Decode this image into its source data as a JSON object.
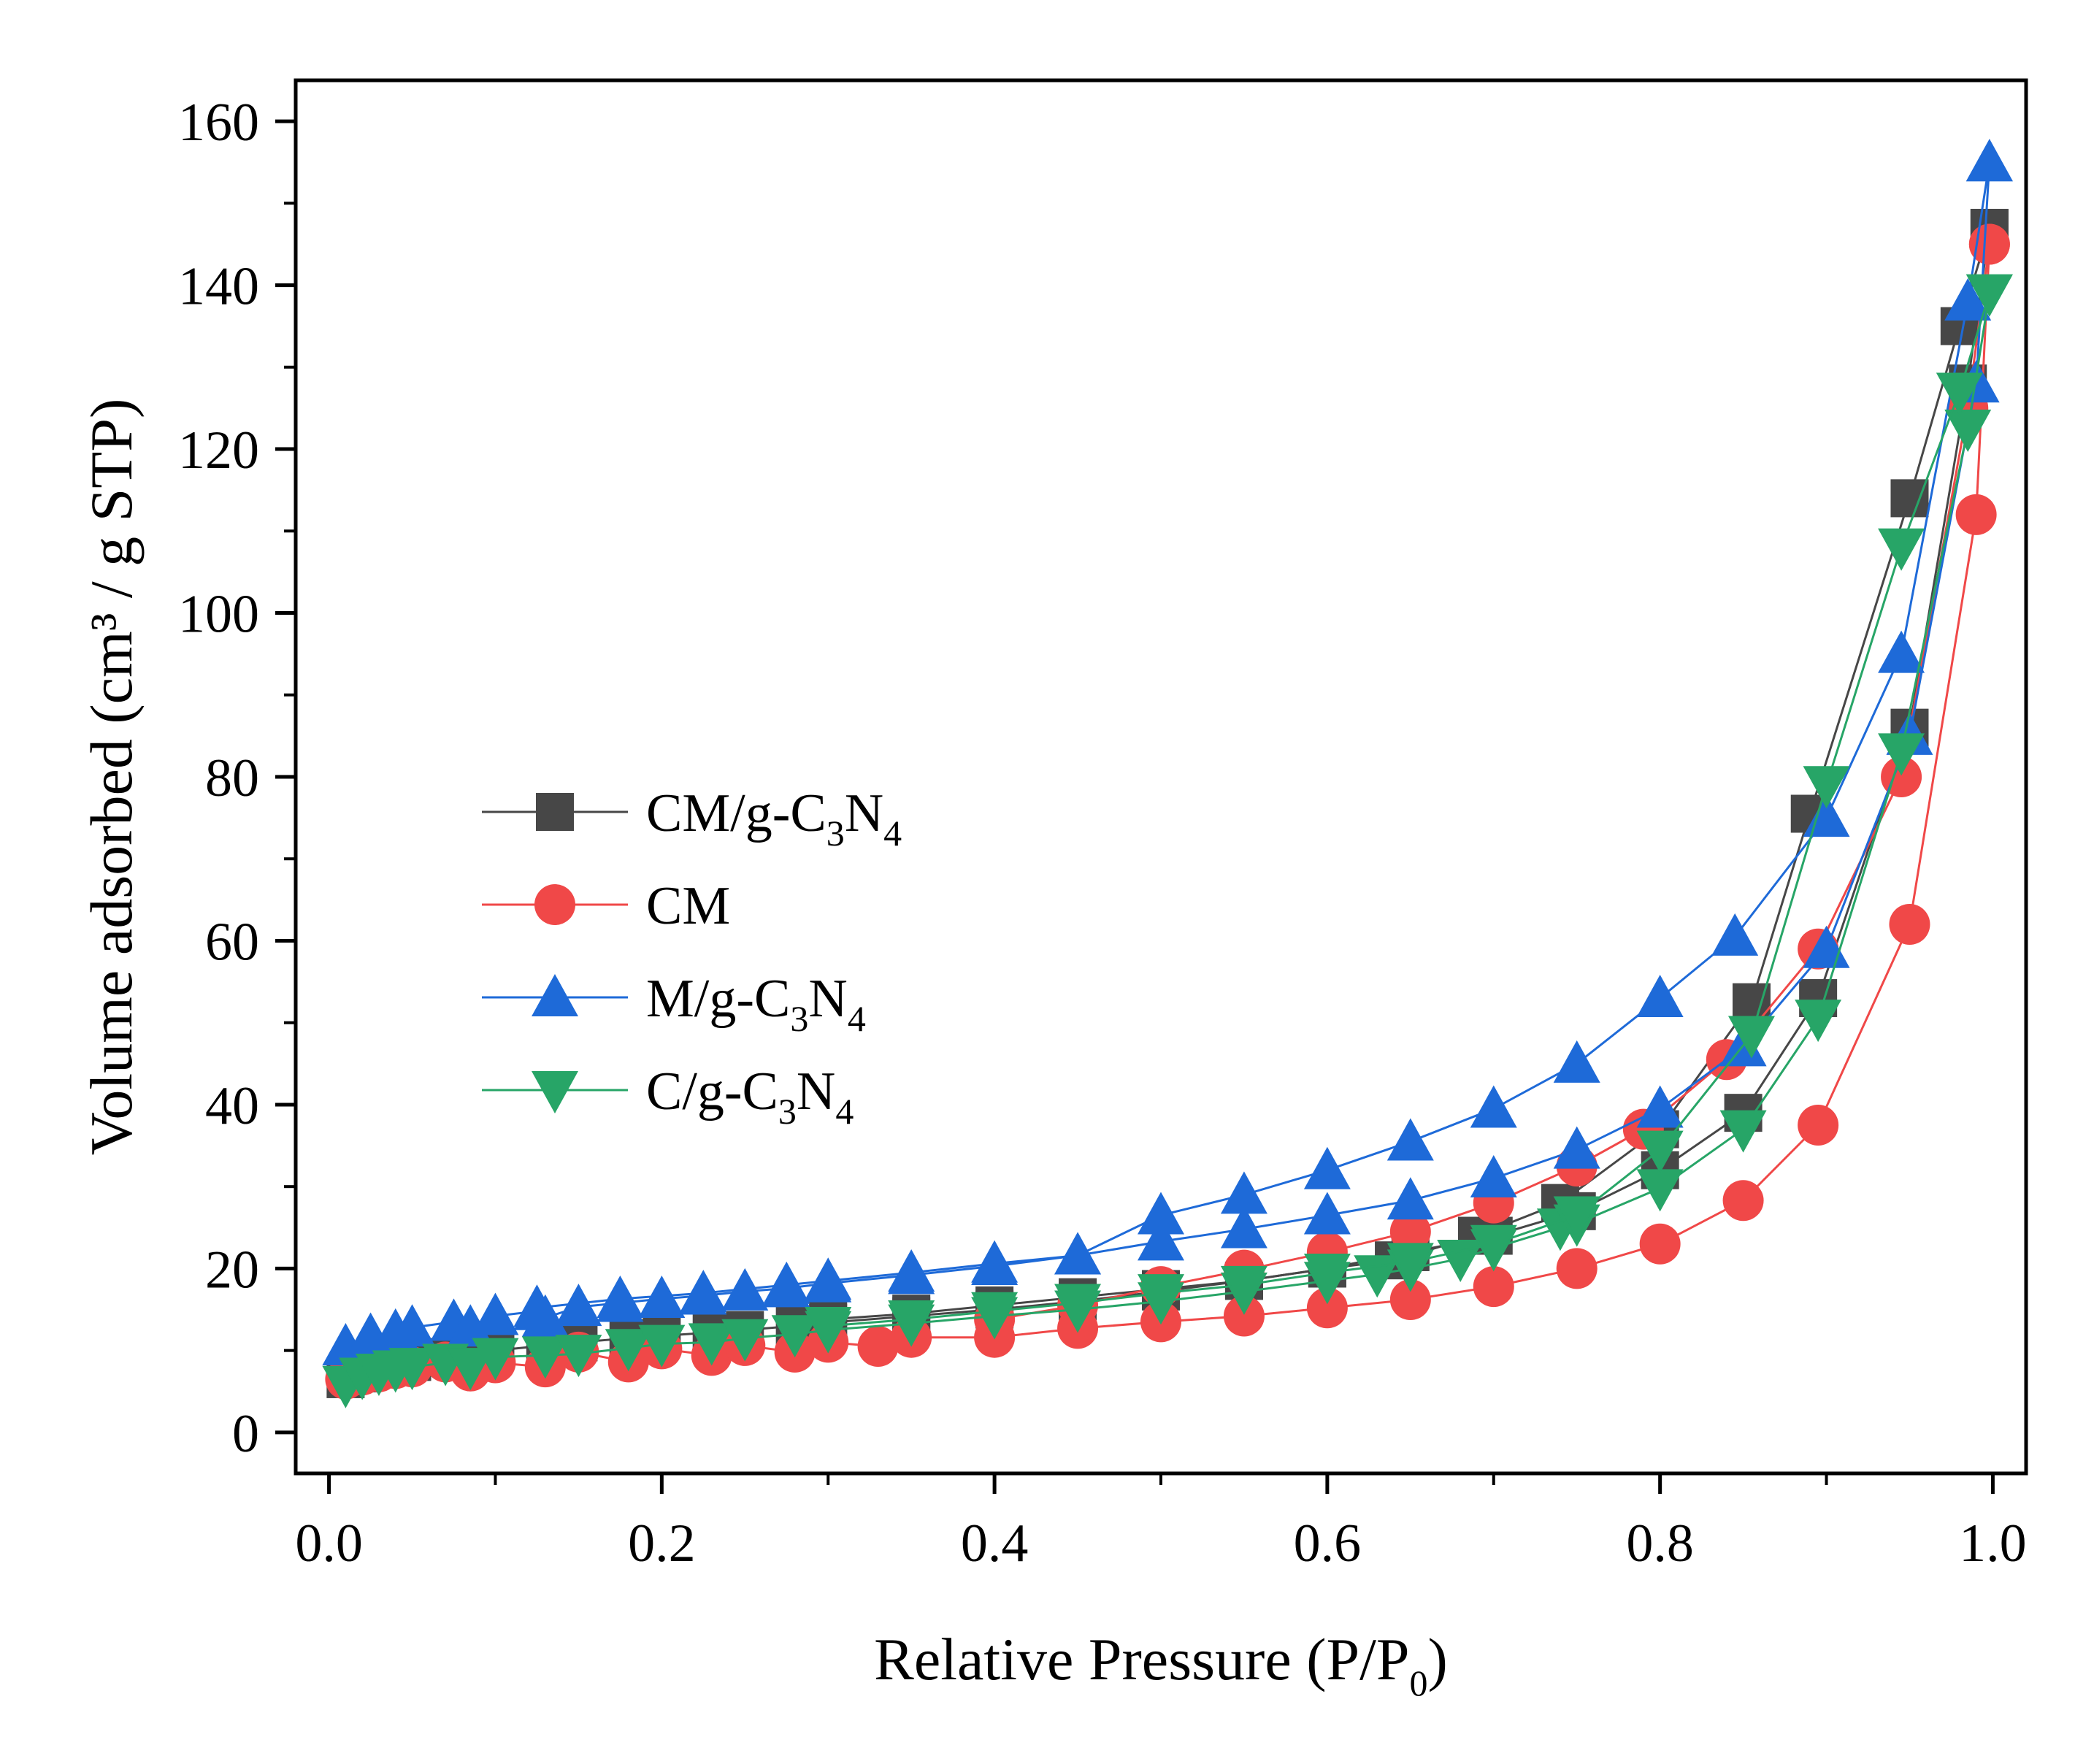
{
  "chart_data": {
    "type": "scatter",
    "xlabel": "Relative Pressure (P/P",
    "xlabel_sub": "0",
    "xlabel_end": ")",
    "ylabel": "Volume adsorbed (cm³ / g STP)",
    "xlim": [
      -0.02,
      1.02
    ],
    "ylim": [
      -5,
      165
    ],
    "xticks": [
      0.0,
      0.2,
      0.4,
      0.6,
      0.8,
      1.0
    ],
    "xtick_labels": [
      "0.0",
      "0.2",
      "0.4",
      "0.6",
      "0.8",
      "1.0"
    ],
    "yticks": [
      0,
      20,
      40,
      60,
      80,
      100,
      120,
      140,
      160
    ],
    "ytick_labels": [
      "0",
      "20",
      "40",
      "60",
      "80",
      "100",
      "120",
      "140",
      "160"
    ],
    "grid": false,
    "legend_position": "center-left",
    "series": [
      {
        "name": "CM/g-C3N4",
        "name_parts": [
          [
            "CM/g-C",
            false
          ],
          [
            "3",
            true
          ],
          [
            "N",
            false
          ],
          [
            "4",
            true
          ]
        ],
        "marker": "square",
        "color": "#474747",
        "adsorption": {
          "x": [
            0.01,
            0.02,
            0.03,
            0.04,
            0.05,
            0.07,
            0.09,
            0.1,
            0.13,
            0.15,
            0.18,
            0.2,
            0.23,
            0.25,
            0.28,
            0.3,
            0.35,
            0.4,
            0.45,
            0.5,
            0.55,
            0.6,
            0.65,
            0.7,
            0.75,
            0.8,
            0.85,
            0.895,
            0.95,
            0.985,
            0.998
          ],
          "y": [
            6.5,
            7.2,
            7.8,
            8.2,
            8.6,
            9.2,
            9.6,
            10.0,
            10.6,
            11.0,
            11.5,
            11.8,
            12.2,
            12.5,
            13.0,
            13.4,
            14.2,
            15.0,
            16.0,
            17.2,
            18.5,
            20.0,
            22.0,
            24.0,
            27.0,
            32.0,
            39.0,
            53.0,
            86.0,
            128.0,
            147.0
          ]
        },
        "desorption": {
          "x": [
            0.998,
            0.98,
            0.95,
            0.89,
            0.855,
            0.8,
            0.74,
            0.69,
            0.64,
            0.6,
            0.55,
            0.5,
            0.45,
            0.4,
            0.35,
            0.3
          ],
          "y": [
            147.0,
            135.0,
            114.0,
            75.5,
            52.5,
            37.0,
            28.0,
            24.0,
            21.0,
            20.0,
            18.5,
            17.5,
            16.5,
            15.5,
            14.5,
            13.8
          ]
        }
      },
      {
        "name": "CM",
        "name_parts": [
          [
            "CM",
            false
          ]
        ],
        "marker": "circle",
        "color": "#f04848",
        "adsorption": {
          "x": [
            0.01,
            0.02,
            0.03,
            0.04,
            0.05,
            0.07,
            0.085,
            0.1,
            0.13,
            0.15,
            0.18,
            0.2,
            0.23,
            0.25,
            0.28,
            0.3,
            0.33,
            0.35,
            0.4,
            0.45,
            0.5,
            0.55,
            0.6,
            0.65,
            0.7,
            0.75,
            0.8,
            0.85,
            0.895,
            0.95,
            0.99,
            0.998
          ],
          "y": [
            6.5,
            7.0,
            7.4,
            7.8,
            8.0,
            8.6,
            7.5,
            8.5,
            8.0,
            9.8,
            8.6,
            10.2,
            9.4,
            10.6,
            9.8,
            11.0,
            10.5,
            11.6,
            11.6,
            12.7,
            13.5,
            14.2,
            15.2,
            16.2,
            17.8,
            20.0,
            23.0,
            28.3,
            37.5,
            62.0,
            112.0,
            145.0
          ]
        },
        "desorption": {
          "x": [
            0.998,
            0.985,
            0.945,
            0.895,
            0.84,
            0.79,
            0.75,
            0.7,
            0.65,
            0.6,
            0.55,
            0.5,
            0.45,
            0.4
          ],
          "y": [
            145.0,
            125.0,
            80.0,
            59.0,
            45.5,
            37.0,
            32.5,
            28.0,
            24.5,
            22.0,
            19.8,
            17.8,
            15.5,
            13.8
          ]
        }
      },
      {
        "name": "M/g-C3N4",
        "name_parts": [
          [
            "M/g-C",
            false
          ],
          [
            "3",
            true
          ],
          [
            "N",
            false
          ],
          [
            "4",
            true
          ]
        ],
        "marker": "triangle-up",
        "color": "#1e6ad8",
        "adsorption": {
          "x": [
            0.01,
            0.025,
            0.04,
            0.05,
            0.075,
            0.085,
            0.1,
            0.125,
            0.13,
            0.15,
            0.175,
            0.2,
            0.225,
            0.25,
            0.275,
            0.3,
            0.35,
            0.4,
            0.45,
            0.5,
            0.55,
            0.6,
            0.65,
            0.7,
            0.75,
            0.8,
            0.85,
            0.9,
            0.95,
            0.99,
            0.998
          ],
          "y": [
            10.5,
            11.8,
            12.3,
            12.8,
            13.5,
            12.8,
            14.2,
            14.8,
            14.0,
            15.3,
            15.8,
            16.3,
            16.7,
            17.2,
            17.6,
            18.2,
            19.2,
            20.3,
            21.6,
            23.3,
            24.8,
            26.5,
            28.3,
            31.0,
            34.5,
            39.5,
            47.0,
            59.0,
            85.0,
            128.0,
            155.0
          ]
        },
        "desorption": {
          "x": [
            0.998,
            0.985,
            0.945,
            0.9,
            0.845,
            0.8,
            0.75,
            0.7,
            0.65,
            0.6,
            0.55,
            0.5,
            0.45,
            0.4,
            0.35,
            0.3,
            0.275,
            0.225,
            0.175,
            0.125
          ],
          "y": [
            155.0,
            138.0,
            95.0,
            75.0,
            60.5,
            53.0,
            45.0,
            39.5,
            35.5,
            32.0,
            29.0,
            26.5,
            21.6,
            20.6,
            19.5,
            18.5,
            18.0,
            17.0,
            16.3,
            15.2
          ]
        }
      },
      {
        "name": "C/g-C3N4",
        "name_parts": [
          [
            "C/g-C",
            false
          ],
          [
            "3",
            true
          ],
          [
            "N",
            false
          ],
          [
            "4",
            true
          ]
        ],
        "marker": "triangle-down",
        "color": "#27a567",
        "adsorption": {
          "x": [
            0.01,
            0.02,
            0.03,
            0.04,
            0.05,
            0.07,
            0.085,
            0.1,
            0.13,
            0.15,
            0.18,
            0.2,
            0.23,
            0.25,
            0.28,
            0.3,
            0.35,
            0.4,
            0.45,
            0.5,
            0.55,
            0.6,
            0.63,
            0.65,
            0.68,
            0.7,
            0.74,
            0.75,
            0.8,
            0.85,
            0.895,
            0.945,
            0.985,
            0.998
          ],
          "y": [
            5.8,
            6.8,
            7.3,
            7.7,
            8.0,
            8.5,
            8.0,
            9.2,
            9.4,
            9.6,
            10.3,
            10.8,
            11.0,
            11.5,
            12.0,
            12.5,
            13.3,
            14.2,
            15.0,
            16.0,
            17.2,
            18.5,
            19.3,
            20.0,
            21.2,
            22.5,
            25.0,
            25.5,
            29.8,
            37.0,
            50.5,
            83.0,
            122.5,
            139.0
          ]
        },
        "desorption": {
          "x": [
            0.998,
            0.98,
            0.945,
            0.9,
            0.855,
            0.8,
            0.75,
            0.7,
            0.65,
            0.6,
            0.55,
            0.5,
            0.45,
            0.4,
            0.35,
            0.3
          ],
          "y": [
            139.0,
            127.0,
            108.0,
            79.0,
            48.5,
            34.5,
            26.5,
            23.0,
            20.8,
            19.5,
            18.0,
            17.0,
            15.8,
            14.8,
            13.8,
            13.0
          ]
        }
      }
    ]
  }
}
